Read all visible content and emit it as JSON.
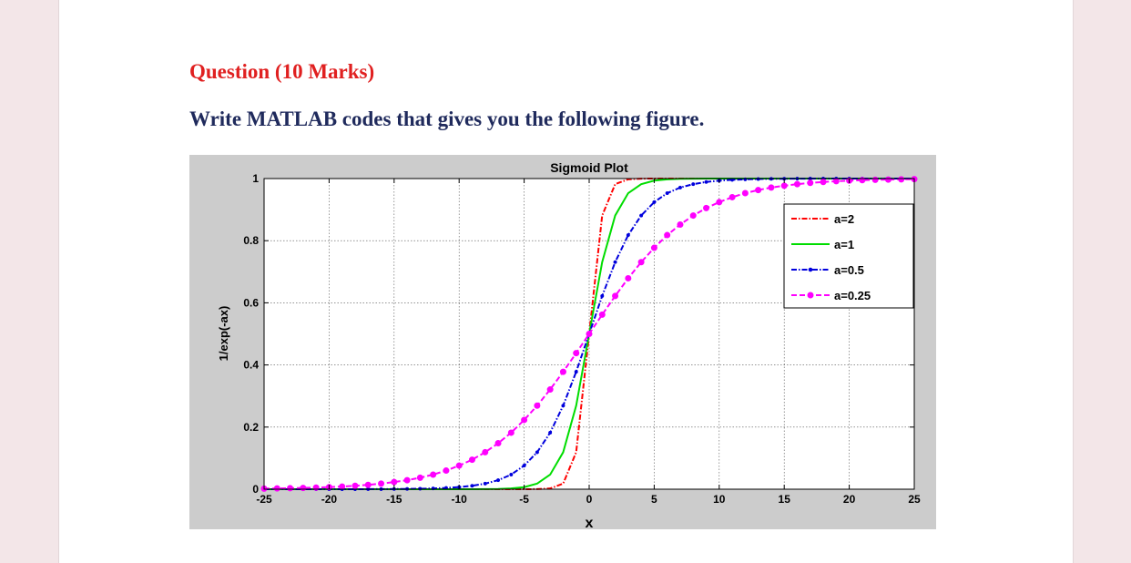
{
  "question": {
    "title": "Question (10 Marks)",
    "instruction": "Write MATLAB codes that gives you the following figure."
  },
  "colors": {
    "title": "#e02020",
    "instruction": "#1f2a5c",
    "figure_bg": "#cccccc",
    "axes_bg": "#ffffff"
  },
  "chart_data": {
    "type": "line",
    "title": "Sigmoid Plot",
    "xlabel": "x",
    "ylabel": "1/exp(-ax)",
    "xlim": [
      -25,
      25
    ],
    "ylim": [
      0,
      1
    ],
    "xticks": [
      "-25",
      "-20",
      "-15",
      "-10",
      "-5",
      "0",
      "5",
      "10",
      "15",
      "20",
      "25"
    ],
    "yticks": [
      "0",
      "0.2",
      "0.4",
      "0.6",
      "0.8",
      "1"
    ],
    "grid": true,
    "legend_position": "top-right",
    "x": [
      -25,
      -24,
      -23,
      -22,
      -21,
      -20,
      -19,
      -18,
      -17,
      -16,
      -15,
      -14,
      -13,
      -12,
      -11,
      -10,
      -9,
      -8,
      -7,
      -6,
      -5,
      -4,
      -3,
      -2,
      -1,
      0,
      1,
      2,
      3,
      4,
      5,
      6,
      7,
      8,
      9,
      10,
      11,
      12,
      13,
      14,
      15,
      16,
      17,
      18,
      19,
      20,
      21,
      22,
      23,
      24,
      25
    ],
    "series": [
      {
        "name": "a=2",
        "color": "#ff0000",
        "style": "dashdot",
        "marker": "none",
        "values": [
          0,
          0,
          0,
          0,
          0,
          0,
          0,
          0,
          0,
          0,
          0,
          0,
          0,
          0,
          0,
          0,
          0,
          0,
          0,
          0,
          0,
          0.0003,
          0.0025,
          0.018,
          0.119,
          0.5,
          0.881,
          0.982,
          0.9975,
          0.9997,
          1,
          1,
          1,
          1,
          1,
          1,
          1,
          1,
          1,
          1,
          1,
          1,
          1,
          1,
          1,
          1,
          1,
          1,
          1,
          1,
          1
        ]
      },
      {
        "name": "a=1",
        "color": "#00dd00",
        "style": "solid",
        "marker": "none",
        "values": [
          0,
          0,
          0,
          0,
          0,
          0,
          0,
          0,
          0,
          0,
          0,
          0,
          0,
          0,
          0,
          0,
          0.0001,
          0.0003,
          0.0009,
          0.0025,
          0.0067,
          0.018,
          0.047,
          0.119,
          0.269,
          0.5,
          0.731,
          0.881,
          0.953,
          0.982,
          0.9933,
          0.9975,
          0.9991,
          0.9997,
          0.9999,
          1,
          1,
          1,
          1,
          1,
          1,
          1,
          1,
          1,
          1,
          1,
          1,
          1,
          1,
          1,
          1
        ]
      },
      {
        "name": "a=0.5",
        "color": "#0000dd",
        "style": "dashdot",
        "marker": "dot",
        "values": [
          0,
          0,
          0,
          0,
          0,
          0,
          0.0001,
          0.0001,
          0.0002,
          0.0003,
          0.0006,
          0.0009,
          0.0015,
          0.0025,
          0.0041,
          0.0067,
          0.011,
          0.018,
          0.029,
          0.047,
          0.076,
          0.119,
          0.182,
          0.269,
          0.378,
          0.5,
          0.622,
          0.731,
          0.818,
          0.881,
          0.924,
          0.953,
          0.971,
          0.982,
          0.989,
          0.9933,
          0.9959,
          0.9975,
          0.9985,
          0.9991,
          0.9994,
          0.9997,
          0.9998,
          0.9999,
          0.9999,
          1,
          1,
          1,
          1,
          1,
          1
        ]
      },
      {
        "name": "a=0.25",
        "color": "#ff00ff",
        "style": "dashed",
        "marker": "circle",
        "values": [
          0.0019,
          0.0025,
          0.0032,
          0.0041,
          0.0052,
          0.0067,
          0.0086,
          0.011,
          0.014,
          0.018,
          0.023,
          0.029,
          0.037,
          0.047,
          0.06,
          0.076,
          0.095,
          0.119,
          0.148,
          0.182,
          0.223,
          0.269,
          0.321,
          0.378,
          0.438,
          0.5,
          0.562,
          0.622,
          0.679,
          0.731,
          0.777,
          0.818,
          0.852,
          0.881,
          0.905,
          0.924,
          0.94,
          0.953,
          0.963,
          0.971,
          0.977,
          0.982,
          0.986,
          0.989,
          0.9914,
          0.9933,
          0.9948,
          0.9959,
          0.9968,
          0.9975,
          0.9981
        ]
      }
    ]
  }
}
